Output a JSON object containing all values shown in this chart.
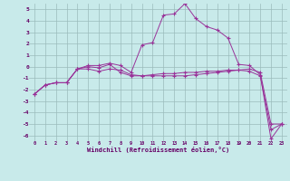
{
  "title": "",
  "xlabel": "Windchill (Refroidissement éolien,°C)",
  "background_color": "#c8eaea",
  "grid_color": "#9bbcbc",
  "line_color": "#993399",
  "x": [
    0,
    1,
    2,
    3,
    4,
    5,
    6,
    7,
    8,
    9,
    10,
    11,
    12,
    13,
    14,
    15,
    16,
    17,
    18,
    19,
    20,
    21,
    22,
    23
  ],
  "line1": [
    -2.4,
    -1.6,
    -1.4,
    -1.4,
    -0.2,
    -0.2,
    -0.4,
    -0.2,
    -0.3,
    -0.7,
    -0.8,
    -0.8,
    -0.8,
    -0.8,
    -0.8,
    -0.7,
    -0.6,
    -0.5,
    -0.4,
    -0.3,
    -0.2,
    -0.5,
    -5.0,
    -5.0
  ],
  "line2": [
    -2.4,
    -1.6,
    -1.4,
    -1.4,
    -0.2,
    0.1,
    0.1,
    0.3,
    0.1,
    -0.5,
    1.9,
    2.1,
    4.5,
    4.6,
    5.5,
    4.2,
    3.5,
    3.2,
    2.5,
    0.2,
    0.1,
    -0.7,
    -6.3,
    -5.0
  ],
  "line3": [
    -2.4,
    -1.6,
    -1.4,
    -1.4,
    -0.2,
    0.0,
    -0.1,
    0.2,
    -0.5,
    -0.8,
    -0.8,
    -0.7,
    -0.6,
    -0.6,
    -0.5,
    -0.5,
    -0.4,
    -0.4,
    -0.3,
    -0.3,
    -0.4,
    -0.8,
    -5.5,
    -5.0
  ],
  "ylim": [
    -6.5,
    5.5
  ],
  "xlim": [
    -0.5,
    23.5
  ],
  "yticks": [
    -6,
    -5,
    -4,
    -3,
    -2,
    -1,
    0,
    1,
    2,
    3,
    4,
    5
  ],
  "xticks": [
    0,
    1,
    2,
    3,
    4,
    5,
    6,
    7,
    8,
    9,
    10,
    11,
    12,
    13,
    14,
    15,
    16,
    17,
    18,
    19,
    20,
    21,
    22,
    23
  ]
}
